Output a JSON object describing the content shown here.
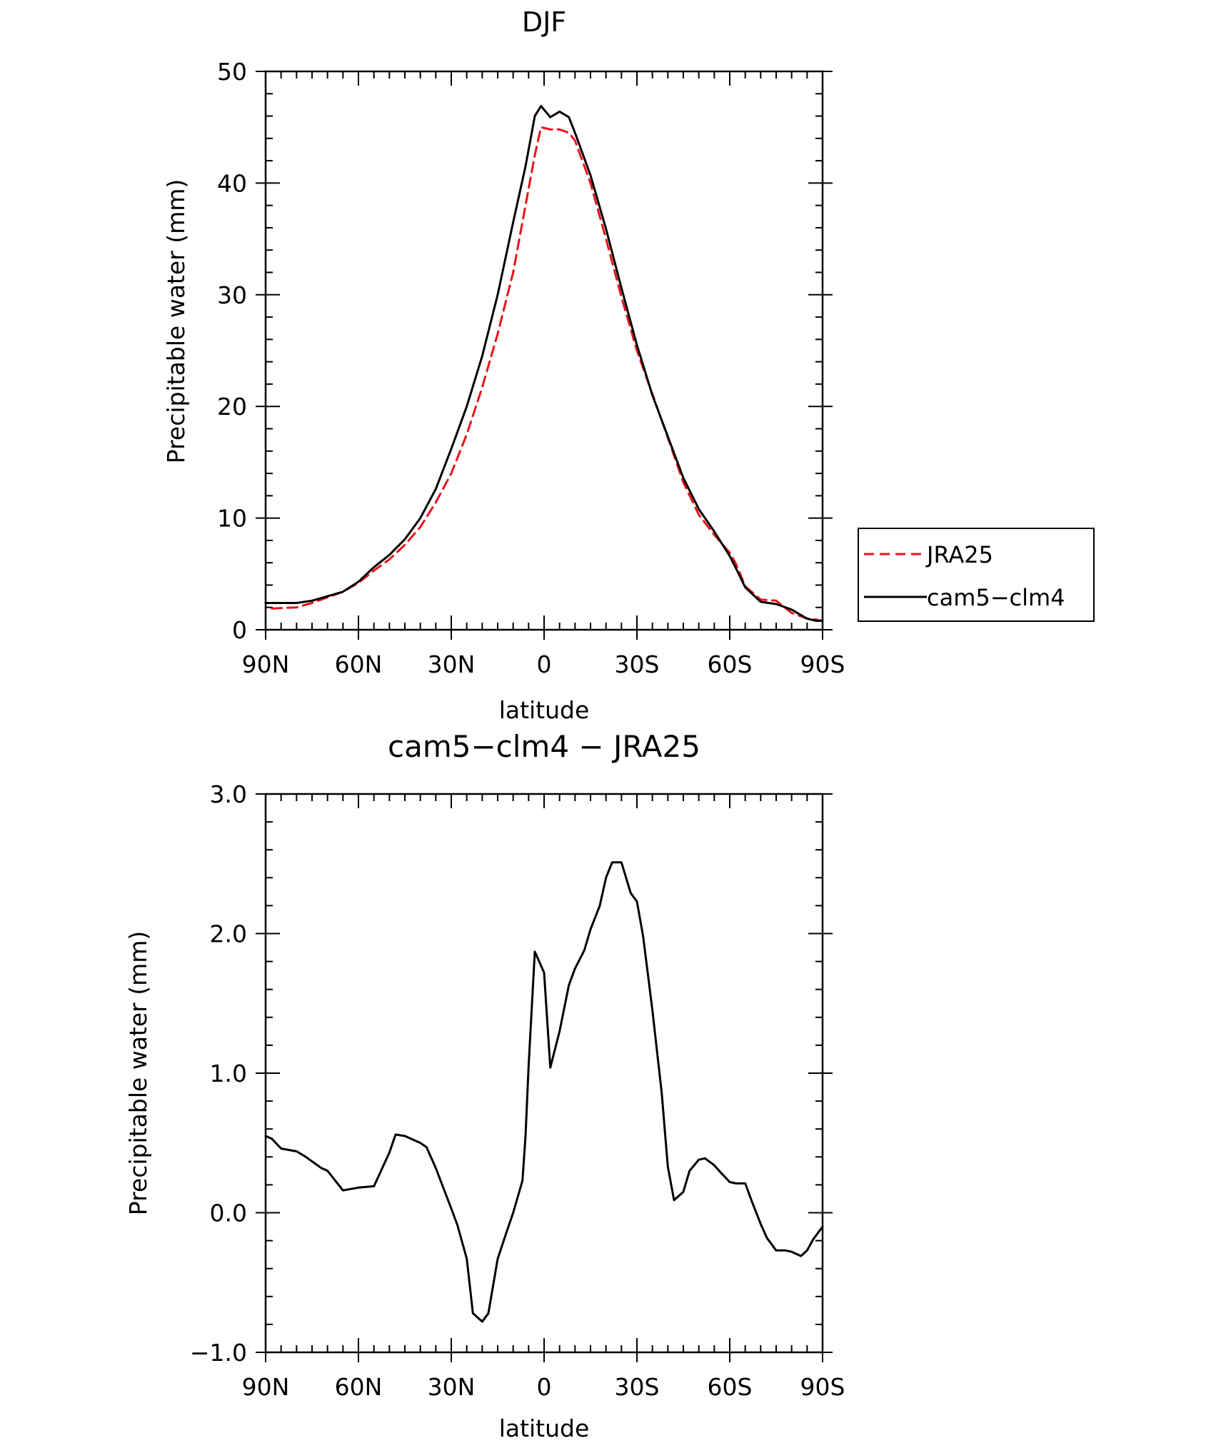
{
  "chart_data": [
    {
      "type": "line",
      "title": "DJF",
      "xlabel": "latitude",
      "ylabel": "Precipitable water (mm)",
      "xlim": [
        -90,
        90
      ],
      "ylim": [
        0,
        50
      ],
      "x_ticks": [
        -90,
        -60,
        -30,
        0,
        30,
        60,
        90
      ],
      "x_tick_labels": [
        "90N",
        "60N",
        "30N",
        "0",
        "30S",
        "60S",
        "90S"
      ],
      "y_ticks": [
        0,
        10,
        20,
        30,
        40,
        50
      ],
      "y_tick_labels": [
        "0",
        "10",
        "20",
        "30",
        "40",
        "50"
      ],
      "legend": [
        "JRA25",
        "cam5−clm4"
      ],
      "series": [
        {
          "name": "JRA25",
          "color": "#e8141a",
          "dash": true,
          "x": [
            -88,
            -80,
            -75,
            -70,
            -65,
            -60,
            -55,
            -50,
            -45,
            -40,
            -35,
            -30,
            -25,
            -20,
            -15,
            -10,
            -6,
            -3,
            -1,
            2,
            5,
            8,
            10,
            15,
            20,
            25,
            30,
            35,
            40,
            45,
            50,
            55,
            60,
            62,
            65,
            70,
            75,
            80,
            85,
            88,
            90
          ],
          "y": [
            1.9,
            2.0,
            2.4,
            2.9,
            3.4,
            4.2,
            5.3,
            6.3,
            7.6,
            9.2,
            11.4,
            14.0,
            17.5,
            21.7,
            26.5,
            32.0,
            38.0,
            42.5,
            45.0,
            44.8,
            44.8,
            44.5,
            43.8,
            40.0,
            35.0,
            29.8,
            25.0,
            21.1,
            17.2,
            13.2,
            10.3,
            8.5,
            6.9,
            5.9,
            3.9,
            2.7,
            2.6,
            1.5,
            1.0,
            0.9,
            0.8
          ]
        },
        {
          "name": "cam5−clm4",
          "color": "#000000",
          "dash": false,
          "x": [
            -90,
            -85,
            -80,
            -75,
            -70,
            -65,
            -60,
            -55,
            -50,
            -45,
            -40,
            -35,
            -30,
            -25,
            -20,
            -15,
            -10,
            -6,
            -3,
            -1,
            2,
            5,
            8,
            10,
            15,
            20,
            25,
            30,
            35,
            40,
            45,
            50,
            55,
            60,
            62,
            65,
            70,
            75,
            80,
            85,
            88,
            90
          ],
          "y": [
            2.4,
            2.4,
            2.4,
            2.6,
            3.0,
            3.4,
            4.3,
            5.6,
            6.7,
            8.1,
            10.0,
            12.6,
            16.2,
            20.0,
            24.5,
            30.0,
            36.5,
            41.5,
            46.0,
            46.9,
            45.9,
            46.4,
            45.9,
            44.5,
            40.7,
            35.9,
            30.6,
            25.5,
            21.0,
            17.3,
            13.6,
            10.8,
            8.8,
            6.6,
            5.5,
            3.8,
            2.5,
            2.3,
            1.8,
            1.0,
            0.8,
            0.8
          ]
        }
      ]
    },
    {
      "type": "line",
      "title": "cam5−clm4 − JRA25",
      "xlabel": "latitude",
      "ylabel": "Precipitable water (mm)",
      "xlim": [
        -90,
        90
      ],
      "ylim": [
        -1.0,
        3.0
      ],
      "x_ticks": [
        -90,
        -60,
        -30,
        0,
        30,
        60,
        90
      ],
      "x_tick_labels": [
        "90N",
        "60N",
        "30N",
        "0",
        "30S",
        "60S",
        "90S"
      ],
      "y_ticks": [
        -1.0,
        0.0,
        1.0,
        2.0,
        3.0
      ],
      "y_tick_labels": [
        "−1.0",
        "0.0",
        "1.0",
        "2.0",
        "3.0"
      ],
      "series": [
        {
          "name": "cam5−clm4 − JRA25",
          "color": "#000000",
          "dash": false,
          "x": [
            -90,
            -88,
            -85,
            -80,
            -77,
            -72,
            -70,
            -65,
            -60,
            -55,
            -50,
            -48,
            -45,
            -40,
            -38,
            -35,
            -30,
            -28,
            -25,
            -23,
            -20,
            -18,
            -15,
            -12,
            -10,
            -7,
            -6,
            -5,
            -3,
            0,
            2,
            5,
            8,
            10,
            13,
            15,
            18,
            20,
            22,
            25,
            28,
            30,
            32,
            35,
            38,
            40,
            42,
            45,
            47,
            50,
            52,
            55,
            57,
            60,
            62,
            65,
            67,
            70,
            72,
            75,
            78,
            80,
            83,
            85,
            87,
            90
          ],
          "y": [
            0.55,
            0.53,
            0.46,
            0.44,
            0.4,
            0.32,
            0.3,
            0.16,
            0.18,
            0.19,
            0.43,
            0.56,
            0.55,
            0.5,
            0.47,
            0.32,
            0.03,
            -0.09,
            -0.33,
            -0.72,
            -0.78,
            -0.72,
            -0.33,
            -0.13,
            0.0,
            0.23,
            0.55,
            1.05,
            1.87,
            1.72,
            1.04,
            1.3,
            1.63,
            1.75,
            1.88,
            2.03,
            2.2,
            2.4,
            2.51,
            2.51,
            2.29,
            2.23,
            1.98,
            1.45,
            0.86,
            0.33,
            0.09,
            0.15,
            0.3,
            0.38,
            0.39,
            0.34,
            0.29,
            0.22,
            0.21,
            0.21,
            0.09,
            -0.08,
            -0.18,
            -0.27,
            -0.27,
            -0.28,
            -0.31,
            -0.27,
            -0.19,
            -0.1
          ]
        }
      ]
    }
  ]
}
